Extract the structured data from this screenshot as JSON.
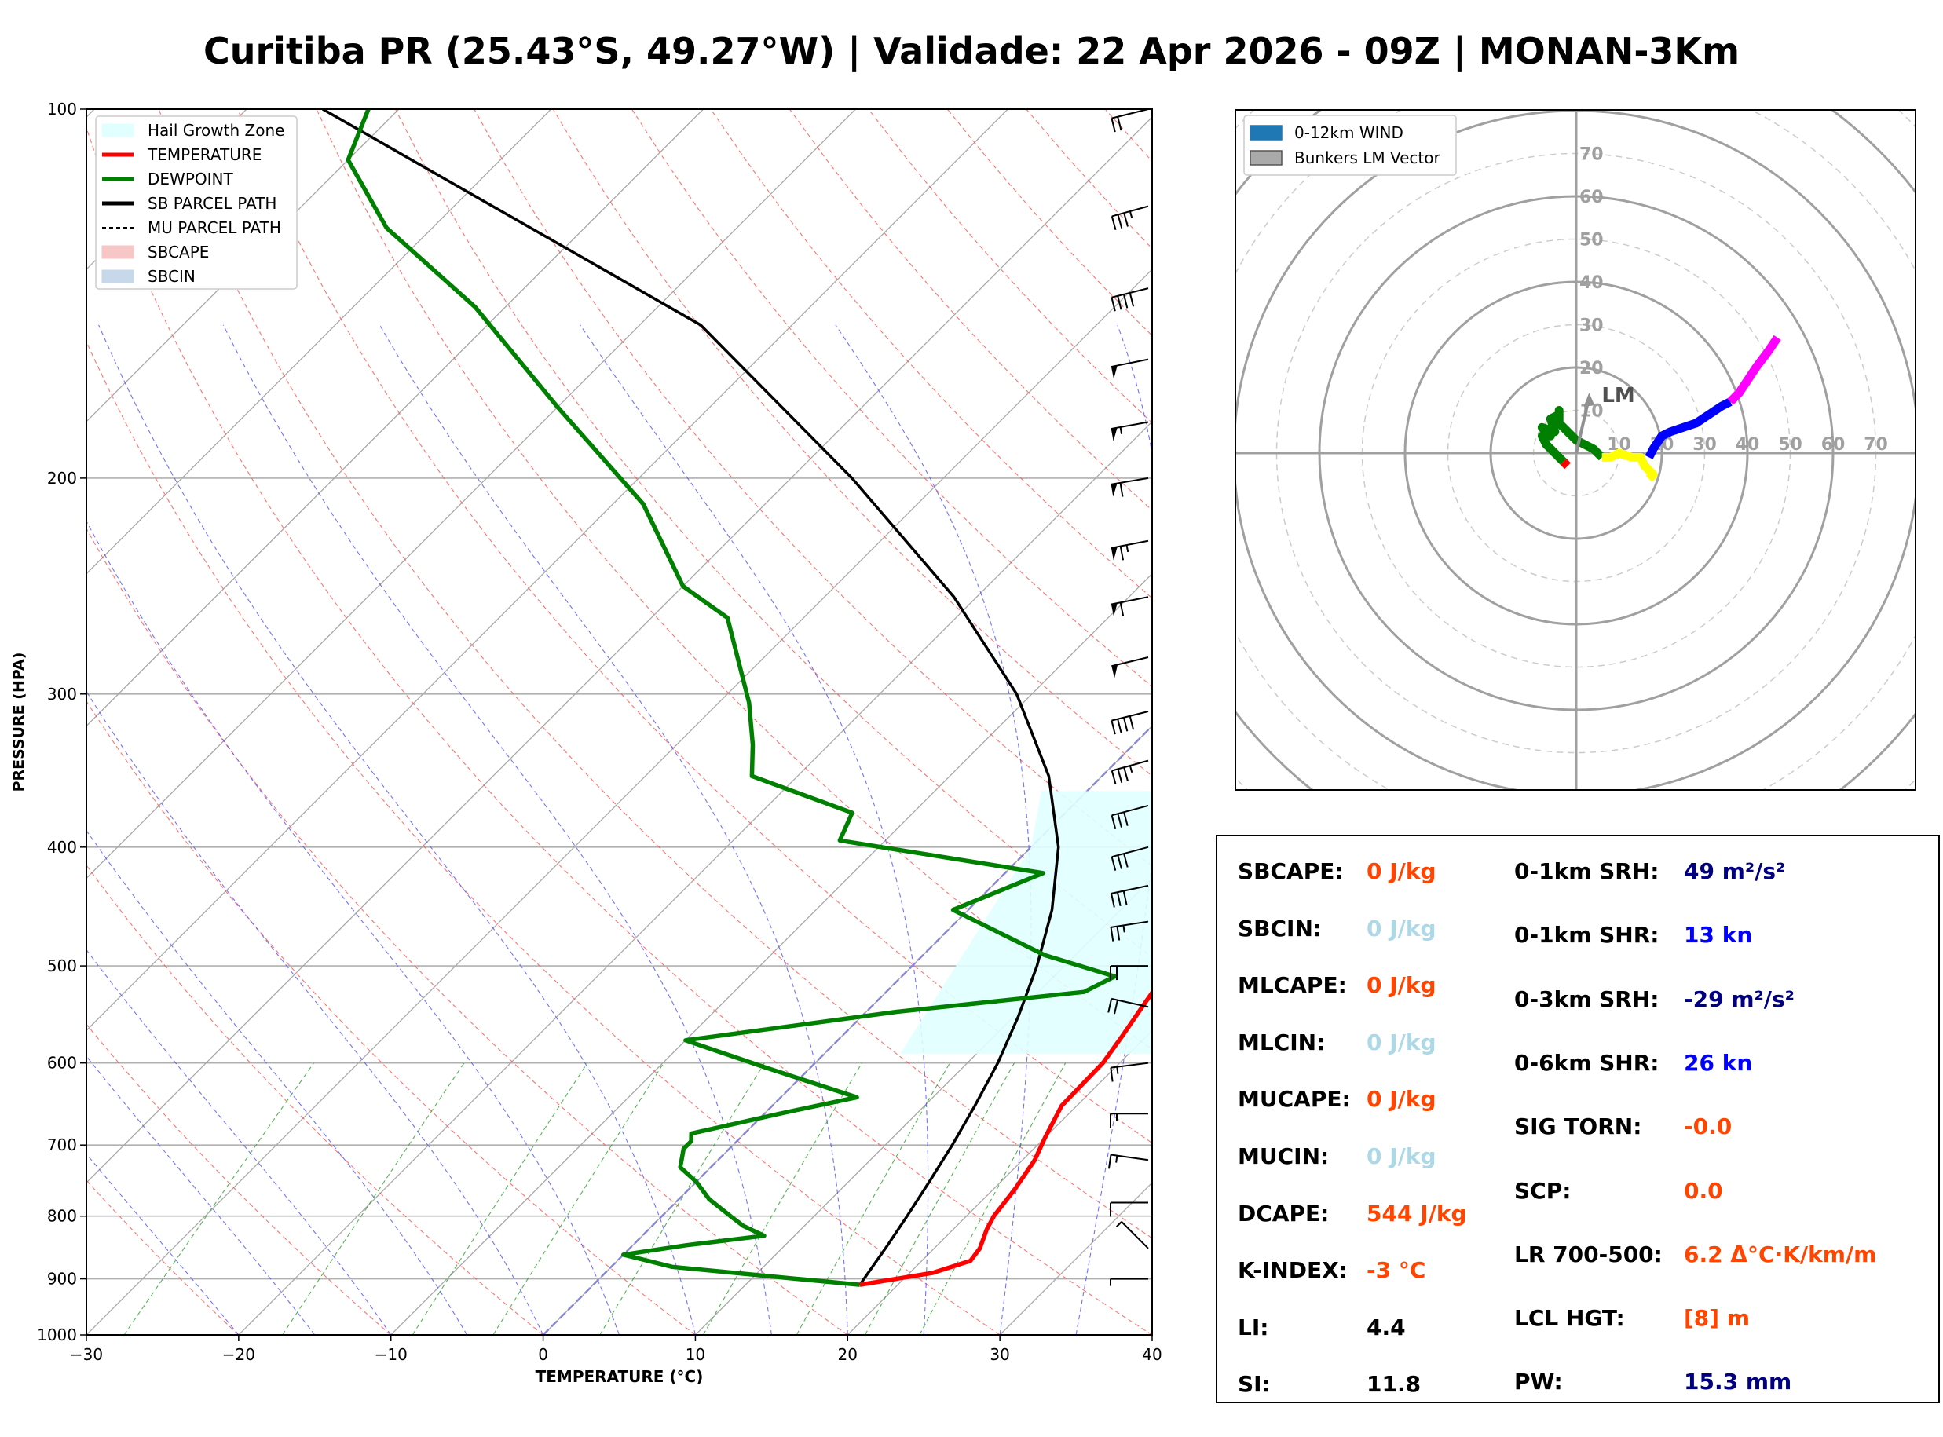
{
  "title": "Curitiba PR (25.43°S, 49.27°W) | Validade: 22 Apr 2026 - 09Z | MONAN-3Km",
  "chart_data": [
    {
      "type": "line",
      "name": "skew-t",
      "xlabel": "TEMPERATURE (°C)",
      "ylabel": "PRESSURE (HPA)",
      "xlim": [
        -30,
        40
      ],
      "ylim": [
        1000,
        100
      ],
      "log_y": true,
      "skew_deg": 45,
      "x_ticks": [
        "−30",
        "−20",
        "−10",
        "0",
        "10",
        "20",
        "30",
        "40"
      ],
      "y_ticks": [
        "100",
        "200",
        "300",
        "400",
        "500",
        "600",
        "700",
        "800",
        "900",
        "1000"
      ],
      "grid": true,
      "legend_position": "top-left",
      "legend": [
        {
          "label": "Hail Growth Zone",
          "color": "#e0ffff",
          "kind": "patch"
        },
        {
          "label": "TEMPERATURE",
          "color": "#ff0000",
          "kind": "line"
        },
        {
          "label": "DEWPOINT",
          "color": "#008000",
          "kind": "line"
        },
        {
          "label": "SB PARCEL PATH",
          "color": "#000000",
          "kind": "line"
        },
        {
          "label": "MU PARCEL PATH",
          "color": "#000000",
          "kind": "dashed"
        },
        {
          "label": "SBCAPE",
          "color": "#f7c6c6",
          "kind": "patch"
        },
        {
          "label": "SBCIN",
          "color": "#c6d8ea",
          "kind": "patch"
        }
      ],
      "temperature": [
        [
          910,
          17.5
        ],
        [
          900,
          19.5
        ],
        [
          890,
          21.5
        ],
        [
          870,
          23.2
        ],
        [
          850,
          23.0
        ],
        [
          820,
          22.2
        ],
        [
          800,
          21.8
        ],
        [
          760,
          21.4
        ],
        [
          720,
          20.8
        ],
        [
          690,
          20.0
        ],
        [
          650,
          19.0
        ],
        [
          600,
          18.9
        ],
        [
          570,
          18.4
        ],
        [
          540,
          17.8
        ],
        [
          520,
          17.4
        ],
        [
          500,
          18.6
        ],
        [
          480,
          20.2
        ],
        [
          460,
          21.5
        ],
        [
          440,
          22.2
        ],
        [
          400,
          23.8
        ],
        [
          380,
          24.3
        ],
        [
          330,
          25.8
        ],
        [
          300,
          26.7
        ],
        [
          260,
          27.5
        ],
        [
          230,
          27.8
        ],
        [
          210,
          28.5
        ],
        [
          185,
          29.5
        ],
        [
          160,
          31.0
        ],
        [
          140,
          32.2
        ],
        [
          120,
          33.6
        ],
        [
          110,
          35.5
        ],
        [
          100,
          38.0
        ]
      ],
      "dewpoint": [
        [
          910,
          17.5
        ],
        [
          900,
          13.0
        ],
        [
          880,
          4.0
        ],
        [
          860,
          0.0
        ],
        [
          845,
          3.5
        ],
        [
          830,
          8.0
        ],
        [
          815,
          6.0
        ],
        [
          800,
          4.5
        ],
        [
          775,
          2.0
        ],
        [
          750,
          0.0
        ],
        [
          730,
          -2.0
        ],
        [
          705,
          -3.0
        ],
        [
          695,
          -3.0
        ],
        [
          685,
          -3.5
        ],
        [
          660,
          1.0
        ],
        [
          640,
          5.0
        ],
        [
          605,
          -3.0
        ],
        [
          575,
          -10.0
        ],
        [
          545,
          2.0
        ],
        [
          525,
          13.0
        ],
        [
          510,
          14.0
        ],
        [
          490,
          8.0
        ],
        [
          450,
          -1.0
        ],
        [
          420,
          2.5
        ],
        [
          395,
          -13.0
        ],
        [
          375,
          -14.0
        ],
        [
          350,
          -23.0
        ],
        [
          330,
          -25.0
        ],
        [
          305,
          -28.0
        ],
        [
          260,
          -35.0
        ],
        [
          245,
          -40.0
        ],
        [
          210,
          -48.0
        ],
        [
          175,
          -60.0
        ],
        [
          145,
          -72.0
        ],
        [
          125,
          -83.0
        ],
        [
          110,
          -90.0
        ],
        [
          100,
          -92.0
        ]
      ],
      "sb_parcel": [
        [
          910,
          17.5
        ],
        [
          850,
          16.8
        ],
        [
          800,
          16.1
        ],
        [
          750,
          15.3
        ],
        [
          700,
          14.4
        ],
        [
          650,
          13.3
        ],
        [
          600,
          12.0
        ],
        [
          550,
          10.3
        ],
        [
          500,
          8.2
        ],
        [
          450,
          5.5
        ],
        [
          400,
          1.8
        ],
        [
          350,
          -3.5
        ],
        [
          300,
          -11.0
        ],
        [
          250,
          -21.5
        ],
        [
          200,
          -36.0
        ],
        [
          150,
          -56.0
        ],
        [
          100,
          -95.0
        ]
      ],
      "hail_zone": [
        [
          360,
          -3.0
        ],
        [
          360,
          20.0
        ],
        [
          590,
          21.5
        ],
        [
          590,
          5.0
        ],
        [
          400,
          0.0
        ]
      ],
      "wind_barbs": [
        {
          "p": 100,
          "u": 20,
          "v": 5
        },
        {
          "p": 120,
          "u": 36,
          "v": 10
        },
        {
          "p": 140,
          "u": 40,
          "v": 10
        },
        {
          "p": 160,
          "u": 50,
          "v": 10
        },
        {
          "p": 180,
          "u": 55,
          "v": 10
        },
        {
          "p": 200,
          "u": 60,
          "v": 10
        },
        {
          "p": 225,
          "u": 62,
          "v": 12
        },
        {
          "p": 250,
          "u": 60,
          "v": 12
        },
        {
          "p": 280,
          "u": 50,
          "v": 12
        },
        {
          "p": 310,
          "u": 40,
          "v": 10
        },
        {
          "p": 340,
          "u": 36,
          "v": 10
        },
        {
          "p": 370,
          "u": 30,
          "v": 8
        },
        {
          "p": 400,
          "u": 30,
          "v": 8
        },
        {
          "p": 430,
          "u": 28,
          "v": 6
        },
        {
          "p": 460,
          "u": 26,
          "v": 4
        },
        {
          "p": 500,
          "u": 22,
          "v": 0
        },
        {
          "p": 540,
          "u": 18,
          "v": -4
        },
        {
          "p": 600,
          "u": 16,
          "v": 2
        },
        {
          "p": 660,
          "u": 15,
          "v": 0
        },
        {
          "p": 720,
          "u": 14,
          "v": -2
        },
        {
          "p": 780,
          "u": 10,
          "v": 0
        },
        {
          "p": 850,
          "u": 5,
          "v": -5
        },
        {
          "p": 900,
          "u": 5,
          "v": 0
        }
      ]
    },
    {
      "type": "line",
      "name": "hodograph",
      "ring_labels": [
        "10",
        "20",
        "30",
        "40",
        "50",
        "60",
        "70"
      ],
      "rlim": [
        0,
        80
      ],
      "legend_position": "top-left",
      "legend": [
        {
          "label": "0-12km WIND",
          "color": "#1f77b4"
        },
        {
          "label": "Bunkers LM Vector",
          "color": "#aaaaaa"
        }
      ],
      "lm_label": "LM",
      "lm_vector": [
        3,
        13
      ],
      "segments": [
        {
          "color": "#ff0000",
          "points": [
            [
              -2,
              -3
            ],
            [
              -3,
              -2
            ]
          ]
        },
        {
          "color": "#008000",
          "points": [
            [
              -3,
              -2
            ],
            [
              -5,
              0
            ],
            [
              -7,
              2
            ],
            [
              -8,
              4
            ],
            [
              -6,
              4
            ],
            [
              -8,
              6
            ],
            [
              -5,
              5
            ],
            [
              -6,
              8
            ],
            [
              -4,
              9
            ],
            [
              -4,
              10
            ],
            [
              -4,
              7
            ],
            [
              -2,
              5
            ],
            [
              0,
              3
            ],
            [
              2,
              2
            ],
            [
              4,
              1
            ],
            [
              5,
              0
            ],
            [
              6,
              -1
            ]
          ]
        },
        {
          "color": "#ffff00",
          "points": [
            [
              6,
              -1
            ],
            [
              8,
              -1
            ],
            [
              10,
              0
            ],
            [
              13,
              -1
            ],
            [
              15,
              -1
            ],
            [
              16,
              -3
            ],
            [
              17,
              -4
            ],
            [
              18,
              -5
            ],
            [
              17,
              -6
            ]
          ]
        },
        {
          "color": "#0000ff",
          "points": [
            [
              17,
              -1
            ],
            [
              18,
              1
            ],
            [
              20,
              4
            ],
            [
              22,
              5
            ],
            [
              25,
              6
            ],
            [
              28,
              7
            ],
            [
              31,
              9
            ],
            [
              34,
              11
            ],
            [
              36,
              12
            ]
          ]
        },
        {
          "color": "#ff00ff",
          "points": [
            [
              36,
              12
            ],
            [
              38,
              14
            ],
            [
              40,
              17
            ],
            [
              42,
              20
            ],
            [
              45,
              24
            ],
            [
              47,
              27
            ]
          ]
        }
      ]
    }
  ],
  "indices": {
    "left": [
      {
        "label": "SBCAPE:",
        "value": "0 J/kg",
        "color": "#ff4500"
      },
      {
        "label": "SBCIN:",
        "value": "0 J/kg",
        "color": "#add8e6"
      },
      {
        "label": "MLCAPE:",
        "value": "0 J/kg",
        "color": "#ff4500"
      },
      {
        "label": "MLCIN:",
        "value": "0 J/kg",
        "color": "#add8e6"
      },
      {
        "label": "MUCAPE:",
        "value": "0 J/kg",
        "color": "#ff4500"
      },
      {
        "label": "MUCIN:",
        "value": "0 J/kg",
        "color": "#add8e6"
      },
      {
        "label": "DCAPE:",
        "value": "544 J/kg",
        "color": "#ff4500"
      },
      {
        "label": "K-INDEX:",
        "value": "-3 °C",
        "color": "#ff4500"
      },
      {
        "label": "LI:",
        "value": "4.4",
        "color": "#000000"
      },
      {
        "label": "SI:",
        "value": "11.8",
        "color": "#000000"
      }
    ],
    "right": [
      {
        "label": "0-1km SRH:",
        "value": "49 m²/s²",
        "color": "#000080"
      },
      {
        "label": "0-1km SHR:",
        "value": "13 kn",
        "color": "#0000ff"
      },
      {
        "label": "0-3km SRH:",
        "value": "-29 m²/s²",
        "color": "#000080"
      },
      {
        "label": "0-6km SHR:",
        "value": "26 kn",
        "color": "#0000ff"
      },
      {
        "label": "SIG TORN:",
        "value": "-0.0",
        "color": "#ff4500"
      },
      {
        "label": "SCP:",
        "value": "0.0",
        "color": "#ff4500"
      },
      {
        "label": "LR 700-500:",
        "value": "6.2 Δ°C·K/km/m",
        "color": "#ff4500"
      },
      {
        "label": "LCL HGT:",
        "value": "[8] m",
        "color": "#ff4500"
      },
      {
        "label": "PW:",
        "value": "15.3 mm",
        "color": "#000080"
      }
    ]
  }
}
